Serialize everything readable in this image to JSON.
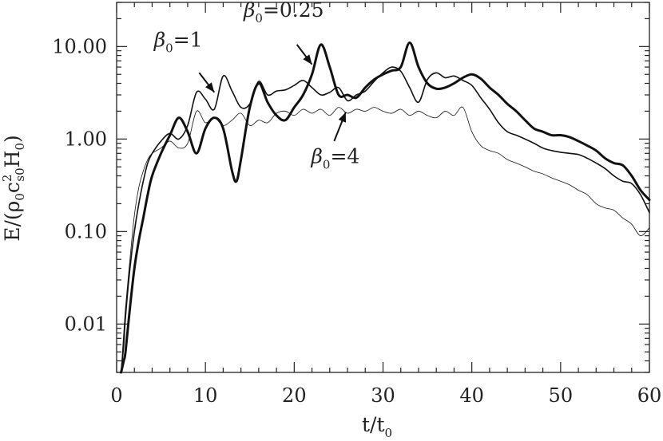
{
  "chart_data": {
    "type": "line",
    "title": "",
    "xlabel": "t/t",
    "xlabel_sub": "0",
    "ylabel": {
      "main": "E/(ρ",
      "sub0": "0",
      "c": "c",
      "sup": "2",
      "sub_s0": "s0",
      "H": "H",
      "sub_h": "0",
      "close": ")"
    },
    "x_scale": "linear",
    "y_scale": "log",
    "xlim": [
      0,
      60
    ],
    "ylim": [
      0.003,
      30
    ],
    "x_ticks": [
      {
        "value": 0,
        "label": "0"
      },
      {
        "value": 10,
        "label": "10"
      },
      {
        "value": 20,
        "label": "20"
      },
      {
        "value": 30,
        "label": "30"
      },
      {
        "value": 40,
        "label": "40"
      },
      {
        "value": 50,
        "label": "50"
      },
      {
        "value": 60,
        "label": "60"
      }
    ],
    "y_ticks": [
      {
        "value": 0.01,
        "label": "0.01"
      },
      {
        "value": 0.1,
        "label": "0.10"
      },
      {
        "value": 1,
        "label": "1.00"
      },
      {
        "value": 10,
        "label": "10.00"
      }
    ],
    "grid": false,
    "legend": "none",
    "series": [
      {
        "stroke_width": 3.0,
        "x": [
          0.5,
          0.8,
          1,
          1.5,
          2,
          2.5,
          3,
          3.5,
          4,
          5,
          6,
          7,
          8,
          9,
          10,
          11,
          12,
          13,
          13.5,
          14,
          15,
          16,
          17,
          18,
          19,
          20,
          21,
          22,
          23,
          24,
          25,
          26,
          27,
          28,
          29,
          30,
          31,
          32,
          33,
          34,
          35,
          36,
          37,
          38,
          39,
          40,
          41,
          42,
          43,
          44,
          45,
          46,
          47,
          48,
          49,
          50,
          51,
          52,
          53,
          54,
          55,
          56,
          57,
          58,
          59,
          60
        ],
        "y": [
          0.003,
          0.004,
          0.005,
          0.015,
          0.04,
          0.08,
          0.14,
          0.25,
          0.4,
          0.7,
          1.1,
          1.7,
          1.2,
          0.7,
          1.3,
          1.7,
          1.3,
          0.45,
          0.35,
          0.6,
          2.2,
          4.0,
          2.5,
          1.8,
          1.6,
          2.2,
          3.0,
          5.0,
          10.5,
          6.0,
          3.0,
          3.0,
          2.8,
          3.6,
          4.4,
          5.0,
          5.5,
          6.0,
          11.0,
          6.0,
          4.0,
          3.5,
          3.6,
          4.0,
          4.6,
          5.0,
          4.5,
          3.6,
          3.0,
          2.4,
          2.0,
          1.6,
          1.3,
          1.2,
          1.1,
          1.1,
          1.05,
          0.95,
          0.85,
          0.75,
          0.62,
          0.55,
          0.52,
          0.4,
          0.28,
          0.22
        ]
      },
      {
        "stroke_width": 1.6,
        "x": [
          0.5,
          0.8,
          1,
          1.5,
          2,
          2.5,
          3,
          3.5,
          4,
          5,
          6,
          7,
          8,
          9,
          10,
          11,
          12,
          13,
          14,
          15,
          16,
          17,
          18,
          19,
          20,
          21,
          22,
          23,
          24,
          25,
          26,
          27,
          28,
          29,
          30,
          31,
          32,
          33,
          34,
          35,
          36,
          37,
          38,
          39,
          40,
          41,
          42,
          43,
          44,
          45,
          46,
          47,
          48,
          49,
          50,
          51,
          52,
          53,
          54,
          55,
          56,
          57,
          58,
          59,
          60
        ],
        "y": [
          0.003,
          0.006,
          0.012,
          0.04,
          0.1,
          0.2,
          0.35,
          0.55,
          0.7,
          0.95,
          1.15,
          1.0,
          1.4,
          3.2,
          2.7,
          2.1,
          4.8,
          3.3,
          2.2,
          2.4,
          4.2,
          3.0,
          3.3,
          3.4,
          3.8,
          4.3,
          3.6,
          3.0,
          3.2,
          3.6,
          2.6,
          3.0,
          3.3,
          4.2,
          5.2,
          6.0,
          5.4,
          3.6,
          2.5,
          4.4,
          5.2,
          4.6,
          4.8,
          4.3,
          3.8,
          2.8,
          2.1,
          1.5,
          1.2,
          1.1,
          1.0,
          0.9,
          0.8,
          0.75,
          0.72,
          0.7,
          0.68,
          0.62,
          0.55,
          0.48,
          0.4,
          0.35,
          0.33,
          0.25,
          0.16
        ]
      },
      {
        "stroke_width": 0.8,
        "x": [
          0.5,
          0.8,
          1,
          1.5,
          2,
          2.5,
          3,
          3.5,
          4,
          5,
          6,
          7,
          8,
          9,
          10,
          11,
          12,
          13,
          14,
          15,
          16,
          17,
          18,
          19,
          20,
          21,
          22,
          23,
          24,
          25,
          26,
          27,
          28,
          29,
          30,
          31,
          32,
          33,
          34,
          35,
          36,
          37,
          38,
          39,
          40,
          41,
          42,
          43,
          44,
          45,
          46,
          47,
          48,
          49,
          50,
          51,
          52,
          53,
          54,
          55,
          56,
          57,
          58,
          59,
          60
        ],
        "y": [
          0.003,
          0.008,
          0.015,
          0.05,
          0.15,
          0.3,
          0.45,
          0.6,
          0.7,
          0.8,
          0.95,
          0.8,
          0.9,
          2.0,
          1.5,
          1.7,
          1.4,
          1.6,
          1.9,
          1.4,
          1.6,
          1.5,
          1.9,
          2.0,
          1.8,
          2.1,
          1.9,
          2.1,
          1.8,
          2.2,
          1.9,
          2.1,
          2.0,
          2.2,
          2.0,
          1.9,
          2.1,
          1.8,
          2.0,
          1.8,
          1.7,
          2.0,
          1.8,
          2.2,
          1.2,
          0.85,
          0.75,
          0.7,
          0.6,
          0.55,
          0.5,
          0.45,
          0.42,
          0.38,
          0.35,
          0.32,
          0.28,
          0.25,
          0.2,
          0.18,
          0.17,
          0.14,
          0.12,
          0.09,
          0.11
        ]
      }
    ],
    "annotations": [
      {
        "id": "b1",
        "text_main": "β",
        "text_sub": "0",
        "text_rest": "=1",
        "x": 4.2,
        "y": 10.0,
        "arrow_from": [
          9.3,
          5.2
        ],
        "arrow_to": [
          11.0,
          3.2
        ]
      },
      {
        "id": "b025",
        "text_main": "β",
        "text_sub": "0",
        "text_rest": "=0.25",
        "x": 14.3,
        "y": 21.0,
        "arrow_from": [
          20.3,
          10.5
        ],
        "arrow_to": [
          22.0,
          6.4
        ]
      },
      {
        "id": "b4",
        "text_main": "β",
        "text_sub": "0",
        "text_rest": "=4",
        "x": 21.9,
        "y": 0.55,
        "arrow_from": [
          24.5,
          0.95
        ],
        "arrow_to": [
          25.8,
          1.95
        ]
      }
    ]
  }
}
